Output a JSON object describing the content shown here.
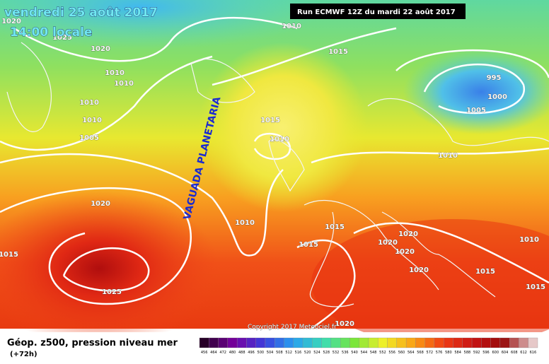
{
  "header": {
    "date": "vendredi 25 août 2017",
    "time": "14:00 locale",
    "run": "Run ECMWF 12Z du mardi 22 août 2017"
  },
  "annotation": "VAGUADA PLANETARIA",
  "isobar_labels": [
    "1020",
    "1025",
    "1010",
    "1015",
    "1020",
    "1010",
    "1010",
    "1010",
    "1010",
    "1005",
    "1015",
    "1010",
    "995",
    "1000",
    "1005",
    "1010",
    "1020",
    "1010",
    "1015",
    "1015",
    "1020",
    "1020",
    "1020",
    "1020",
    "1015",
    "1025",
    "1015",
    "1010",
    "1015",
    "1020"
  ],
  "copyright": "Copyright 2017 Meteociel.fr",
  "footer": {
    "title": "Géop. z500, pression niveau mer",
    "lead": "(+72h)"
  },
  "colorbar": [
    456,
    464,
    472,
    480,
    488,
    496,
    500,
    504,
    508,
    512,
    516,
    520,
    524,
    528,
    532,
    536,
    540,
    544,
    548,
    552,
    556,
    560,
    564,
    568,
    572,
    576,
    580,
    584,
    588,
    592,
    596,
    600,
    604,
    608,
    612,
    616
  ]
}
